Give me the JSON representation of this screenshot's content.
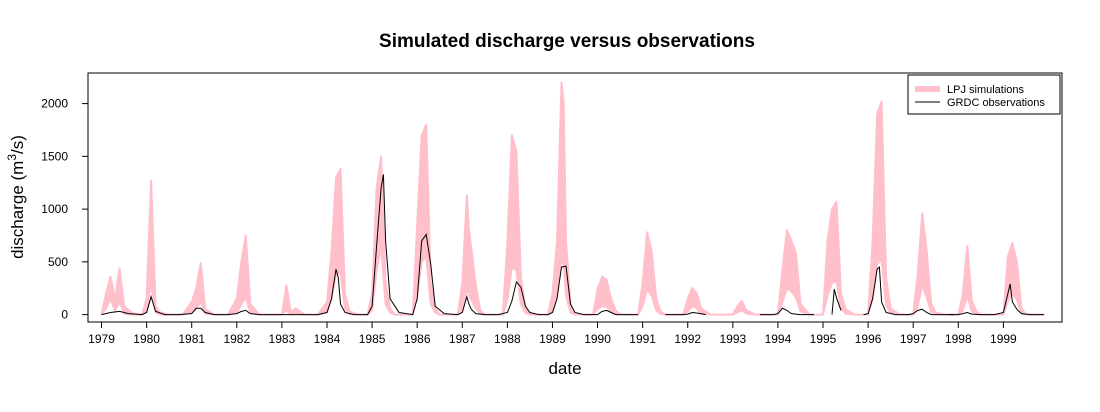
{
  "chart_data": {
    "type": "line",
    "title": "Simulated discharge versus observations",
    "xlabel": "date",
    "ylabel": "discharge (m",
    "ylabel_superscript": "3",
    "ylabel_suffix": "/s)",
    "xlim": [
      1978.7,
      2000.3
    ],
    "ylim": [
      -70,
      2290
    ],
    "x_ticks": [
      1979,
      1980,
      1981,
      1982,
      1983,
      1984,
      1985,
      1986,
      1987,
      1988,
      1989,
      1990,
      1991,
      1992,
      1993,
      1994,
      1995,
      1996,
      1997,
      1998,
      1999
    ],
    "x_tick_labels": [
      "1979",
      "1980",
      "1981",
      "1982",
      "1983",
      "1984",
      "1985",
      "1986",
      "1987",
      "1988",
      "1989",
      "1990",
      "1991",
      "1992",
      "1993",
      "1994",
      "1995",
      "1996",
      "1997",
      "1998",
      "1999"
    ],
    "y_ticks": [
      0,
      500,
      1000,
      1500,
      2000
    ],
    "y_tick_labels": [
      "0",
      "500",
      "1000",
      "1500",
      "2000"
    ],
    "legend": {
      "position": "top-right",
      "entries": [
        {
          "label": "LPJ simulations",
          "color": "#ffc0cb",
          "style": "band"
        },
        {
          "label": "GRDC observations",
          "color": "#000000",
          "style": "line"
        }
      ]
    },
    "series": [
      {
        "name": "LPJ simulations",
        "color": "#ffc0cb",
        "x": [
          1979.0,
          1979.1,
          1979.2,
          1979.3,
          1979.4,
          1979.5,
          1979.7,
          1979.9,
          1980.0,
          1980.1,
          1980.2,
          1980.3,
          1980.5,
          1980.8,
          1981.0,
          1981.1,
          1981.2,
          1981.3,
          1981.5,
          1981.8,
          1982.0,
          1982.1,
          1982.2,
          1982.3,
          1982.5,
          1982.9,
          1983.0,
          1983.1,
          1983.2,
          1983.3,
          1983.5,
          1983.8,
          1984.0,
          1984.1,
          1984.2,
          1984.3,
          1984.4,
          1984.5,
          1984.7,
          1984.9,
          1985.0,
          1985.1,
          1985.2,
          1985.3,
          1985.4,
          1985.5,
          1985.7,
          1985.9,
          1986.0,
          1986.1,
          1986.2,
          1986.3,
          1986.4,
          1986.5,
          1986.7,
          1986.9,
          1987.0,
          1987.1,
          1987.15,
          1987.3,
          1987.4,
          1987.5,
          1987.7,
          1987.9,
          1988.0,
          1988.1,
          1988.2,
          1988.3,
          1988.4,
          1988.5,
          1988.7,
          1988.9,
          1989.0,
          1989.1,
          1989.2,
          1989.25,
          1989.3,
          1989.4,
          1989.5,
          1989.7,
          1989.9,
          1990.0,
          1990.1,
          1990.2,
          1990.3,
          1990.4,
          1990.5,
          1990.7,
          1990.9,
          1991.0,
          1991.1,
          1991.2,
          1991.3,
          1991.4,
          1991.5,
          1991.7,
          1991.9,
          1992.0,
          1992.1,
          1992.2,
          1992.3,
          1992.5,
          1992.8,
          1993.0,
          1993.1,
          1993.2,
          1993.3,
          1993.5,
          1993.8,
          1994.0,
          1994.1,
          1994.2,
          1994.3,
          1994.4,
          1994.5,
          1994.7,
          1994.9,
          1995.0,
          1995.1,
          1995.2,
          1995.3,
          1995.4,
          1995.5,
          1995.7,
          1995.9,
          1996.0,
          1996.1,
          1996.2,
          1996.3,
          1996.4,
          1996.5,
          1996.7,
          1996.9,
          1997.0,
          1997.1,
          1997.2,
          1997.3,
          1997.4,
          1997.5,
          1997.7,
          1997.9,
          1998.0,
          1998.1,
          1998.2,
          1998.3,
          1998.4,
          1998.5,
          1998.7,
          1998.9,
          1999.0,
          1999.1,
          1999.2,
          1999.3,
          1999.4,
          1999.5,
          1999.7,
          1999.9
        ],
        "upper": [
          0,
          200,
          360,
          150,
          440,
          80,
          10,
          0,
          150,
          1270,
          80,
          20,
          0,
          0,
          120,
          250,
          490,
          50,
          0,
          0,
          150,
          500,
          750,
          100,
          0,
          0,
          0,
          280,
          20,
          60,
          0,
          0,
          120,
          600,
          1300,
          1380,
          200,
          30,
          0,
          0,
          200,
          1200,
          1500,
          300,
          60,
          0,
          0,
          0,
          850,
          1700,
          1800,
          300,
          60,
          0,
          0,
          0,
          300,
          1130,
          800,
          280,
          40,
          0,
          0,
          0,
          700,
          1700,
          1550,
          350,
          60,
          0,
          0,
          0,
          200,
          700,
          2200,
          2000,
          700,
          100,
          0,
          0,
          0,
          240,
          360,
          330,
          150,
          40,
          0,
          0,
          0,
          300,
          780,
          600,
          150,
          30,
          0,
          0,
          0,
          150,
          250,
          200,
          60,
          0,
          0,
          0,
          80,
          130,
          40,
          0,
          0,
          0,
          430,
          800,
          700,
          580,
          100,
          0,
          0,
          0,
          700,
          1000,
          1070,
          200,
          50,
          0,
          0,
          0,
          700,
          1900,
          2020,
          350,
          60,
          0,
          0,
          0,
          380,
          960,
          600,
          100,
          20,
          0,
          0,
          0,
          190,
          650,
          130,
          30,
          0,
          0,
          0,
          0,
          550,
          680,
          500,
          60,
          0,
          0,
          0
        ],
        "lower": [
          0,
          60,
          150,
          40,
          120,
          10,
          0,
          0,
          30,
          300,
          20,
          0,
          0,
          0,
          20,
          60,
          120,
          10,
          0,
          0,
          20,
          100,
          160,
          20,
          0,
          0,
          0,
          40,
          0,
          10,
          0,
          0,
          20,
          150,
          380,
          400,
          50,
          5,
          0,
          0,
          40,
          420,
          650,
          100,
          20,
          0,
          0,
          0,
          180,
          500,
          560,
          100,
          20,
          0,
          0,
          0,
          50,
          250,
          180,
          60,
          10,
          0,
          0,
          0,
          140,
          450,
          420,
          100,
          15,
          0,
          0,
          0,
          40,
          180,
          520,
          480,
          180,
          20,
          0,
          0,
          0,
          50,
          80,
          70,
          30,
          5,
          0,
          0,
          0,
          80,
          240,
          180,
          40,
          5,
          0,
          0,
          0,
          30,
          80,
          60,
          10,
          0,
          0,
          0,
          20,
          40,
          10,
          0,
          0,
          0,
          120,
          250,
          220,
          160,
          30,
          0,
          0,
          0,
          180,
          300,
          320,
          60,
          10,
          0,
          0,
          0,
          150,
          480,
          520,
          90,
          15,
          0,
          0,
          0,
          80,
          280,
          160,
          25,
          5,
          0,
          0,
          0,
          40,
          180,
          30,
          5,
          0,
          0,
          0,
          0,
          130,
          200,
          140,
          15,
          0,
          0,
          0
        ]
      },
      {
        "name": "GRDC observations",
        "color": "#000000",
        "segments": [
          {
            "x": [
              1979.0,
              1979.2,
              1979.4,
              1979.6,
              1979.9,
              1980.0,
              1980.1,
              1980.2,
              1980.4,
              1980.7,
              1981.0,
              1981.1,
              1981.2,
              1981.3,
              1981.5,
              1981.8,
              1982.0,
              1982.1,
              1982.2,
              1982.3,
              1982.5,
              1982.8,
              1983.0,
              1983.4,
              1983.8,
              1984.0,
              1984.1,
              1984.2,
              1984.25,
              1984.3,
              1984.4,
              1984.6,
              1984.9,
              1985.0,
              1985.1,
              1985.2,
              1985.25,
              1985.3,
              1985.4,
              1985.6,
              1985.9,
              1986.0,
              1986.1,
              1986.2,
              1986.3,
              1986.4,
              1986.6,
              1986.9,
              1987.0,
              1987.1,
              1987.15,
              1987.2,
              1987.3,
              1987.5,
              1987.8,
              1988.0,
              1988.1,
              1988.2,
              1988.3,
              1988.4,
              1988.5,
              1988.7,
              1988.9,
              1989.0,
              1989.1,
              1989.2,
              1989.3,
              1989.4,
              1989.5,
              1989.7,
              1989.9,
              1990.0,
              1990.1,
              1990.2,
              1990.3,
              1990.4,
              1990.6,
              1990.9
            ],
            "y": [
              0,
              20,
              30,
              10,
              0,
              20,
              170,
              30,
              0,
              0,
              10,
              60,
              60,
              20,
              0,
              0,
              10,
              30,
              40,
              10,
              0,
              0,
              0,
              0,
              0,
              20,
              150,
              430,
              350,
              100,
              20,
              0,
              0,
              80,
              650,
              1200,
              1330,
              700,
              150,
              20,
              0,
              150,
              700,
              760,
              480,
              80,
              10,
              0,
              20,
              170,
              100,
              50,
              10,
              0,
              0,
              20,
              130,
              310,
              260,
              80,
              20,
              0,
              0,
              20,
              150,
              450,
              460,
              100,
              20,
              0,
              0,
              0,
              30,
              40,
              20,
              0,
              0,
              0
            ]
          },
          {
            "x": [
              1991.5,
              1991.9,
              1992.0,
              1992.1,
              1992.2,
              1992.4
            ],
            "y": [
              0,
              0,
              5,
              20,
              15,
              0
            ]
          },
          {
            "x": [
              1993.6,
              1993.9,
              1994.0,
              1994.1,
              1994.2,
              1994.3,
              1994.5,
              1994.8
            ],
            "y": [
              0,
              0,
              10,
              60,
              40,
              10,
              0,
              0
            ]
          },
          {
            "x": [
              1995.2,
              1995.25,
              1995.3,
              1995.4
            ],
            "y": [
              0,
              240,
              160,
              40
            ]
          },
          {
            "x": [
              1995.9,
              1996.0,
              1996.1,
              1996.2,
              1996.25,
              1996.3,
              1996.4,
              1996.6,
              1996.9,
              1997.0,
              1997.1,
              1997.2,
              1997.3,
              1997.4,
              1997.6,
              1997.9
            ],
            "y": [
              0,
              10,
              150,
              430,
              450,
              120,
              20,
              0,
              0,
              10,
              40,
              50,
              20,
              0,
              0,
              0
            ]
          },
          {
            "x": [
              1997.8,
              1998.0,
              1998.1,
              1998.2,
              1998.3,
              1998.5,
              1998.8,
              1999.0,
              1999.1,
              1999.15,
              1999.2,
              1999.3,
              1999.4,
              1999.6,
              1999.9
            ],
            "y": [
              0,
              0,
              10,
              20,
              5,
              0,
              0,
              20,
              200,
              290,
              120,
              50,
              10,
              0,
              0
            ]
          }
        ]
      }
    ]
  }
}
